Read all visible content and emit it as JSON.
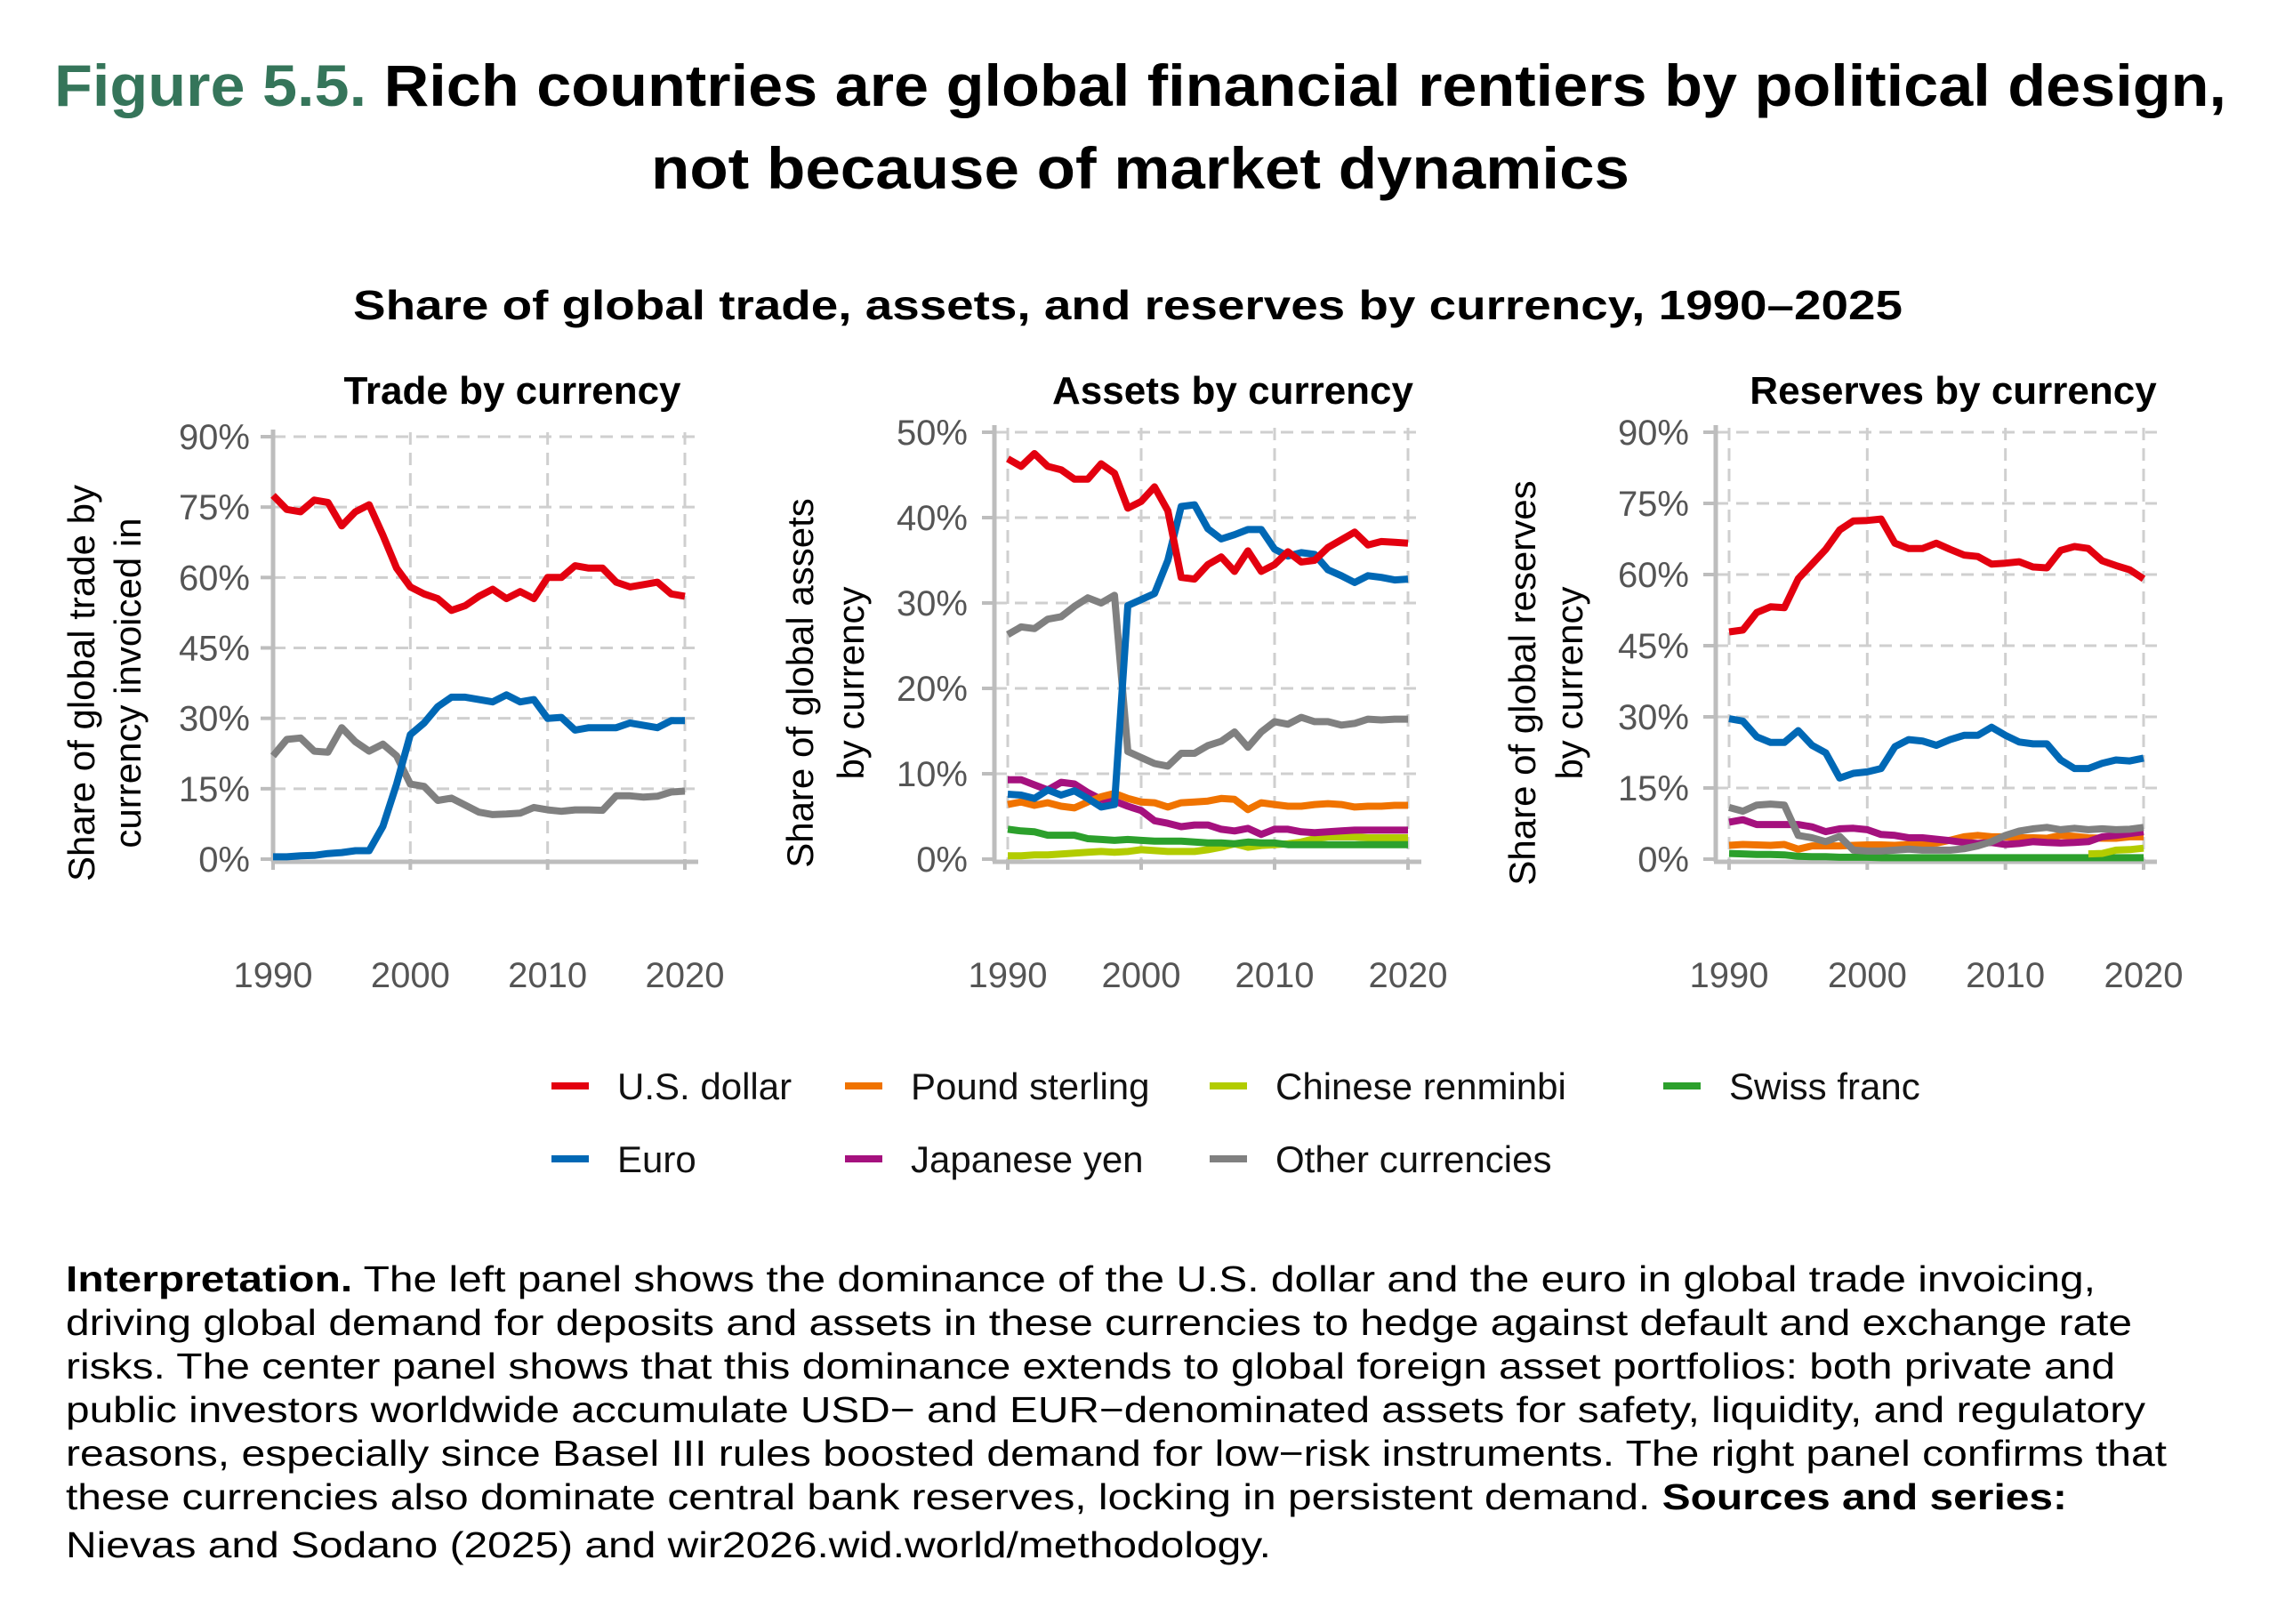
{
  "figure": {
    "label": "Figure 5.5.",
    "title_line1": "Rich countries are global financial rentiers by political design,",
    "title_line2": "not because of market dynamics",
    "label_color": "#35755a"
  },
  "subtitle": "Share of global trade, assets, and reserves by currency, 1990–2025",
  "legend": [
    {
      "key": "usd",
      "label": "U.S. dollar",
      "color": "#e3000f"
    },
    {
      "key": "gbp",
      "label": "Pound sterling",
      "color": "#f07300"
    },
    {
      "key": "cny",
      "label": "Chinese renminbi",
      "color": "#b2cc00"
    },
    {
      "key": "chf",
      "label": "Swiss franc",
      "color": "#2ca02c"
    },
    {
      "key": "eur",
      "label": "Euro",
      "color": "#0068b5"
    },
    {
      "key": "jpy",
      "label": "Japanese yen",
      "color": "#a5117e"
    },
    {
      "key": "oth",
      "label": "Other currencies",
      "color": "#808080"
    }
  ],
  "chart_data": [
    {
      "type": "line",
      "title": "Trade by currency",
      "ylabel": [
        "Share of global trade by",
        "currency invoiced in"
      ],
      "x": [
        1990,
        1991,
        1992,
        1993,
        1994,
        1995,
        1996,
        1997,
        1998,
        1999,
        2000,
        2001,
        2002,
        2003,
        2004,
        2005,
        2006,
        2007,
        2008,
        2009,
        2010,
        2011,
        2012,
        2013,
        2014,
        2015,
        2016,
        2017,
        2018,
        2019,
        2020
      ],
      "xticks": [
        "1990",
        "2000",
        "2010",
        "2020"
      ],
      "yticks": [
        "0%",
        "15%",
        "30%",
        "45%",
        "60%",
        "75%",
        "90%"
      ],
      "ylim": [
        0,
        90
      ],
      "grid": true,
      "series": [
        {
          "key": "oth",
          "values": [
            22,
            25.5,
            25.8,
            23,
            22.8,
            28,
            25,
            23,
            24.5,
            22,
            16,
            15.5,
            12.5,
            13,
            11.5,
            10,
            9.5,
            9.6,
            9.8,
            11,
            10.5,
            10.2,
            10.5,
            10.5,
            10.4,
            13.5,
            13.5,
            13.2,
            13.4,
            14.3,
            14.5
          ]
        },
        {
          "key": "eur",
          "values": [
            0.5,
            0.5,
            0.7,
            0.8,
            1.2,
            1.4,
            1.8,
            1.8,
            7,
            16,
            26.5,
            29,
            32.5,
            34.5,
            34.5,
            34,
            33.5,
            35,
            33.5,
            34,
            30,
            30.2,
            27.5,
            28,
            28,
            28,
            29,
            28.5,
            28,
            29.5,
            29.5
          ]
        },
        {
          "key": "usd",
          "values": [
            77.5,
            74.5,
            74,
            76.5,
            76,
            71,
            74,
            75.5,
            69,
            62,
            58,
            56.5,
            55.5,
            53,
            54,
            56,
            57.5,
            55.5,
            57,
            55.5,
            60,
            60,
            62.5,
            62,
            62,
            59,
            58,
            58.5,
            59,
            56.5,
            56
          ]
        }
      ]
    },
    {
      "type": "line",
      "title": "Assets by currency",
      "ylabel": [
        "Share of global assets",
        "by currency"
      ],
      "x": [
        1990,
        1991,
        1992,
        1993,
        1994,
        1995,
        1996,
        1997,
        1998,
        1999,
        2000,
        2001,
        2002,
        2003,
        2004,
        2005,
        2006,
        2007,
        2008,
        2009,
        2010,
        2011,
        2012,
        2013,
        2014,
        2015,
        2016,
        2017,
        2018,
        2019,
        2020
      ],
      "xticks": [
        "1990",
        "2000",
        "2010",
        "2020"
      ],
      "yticks": [
        "0%",
        "10%",
        "20%",
        "30%",
        "40%",
        "50%"
      ],
      "ylim": [
        0,
        50
      ],
      "grid": true,
      "series": [
        {
          "key": "cny",
          "values": [
            0.4,
            0.4,
            0.5,
            0.5,
            0.6,
            0.7,
            0.8,
            0.9,
            0.8,
            0.9,
            1.1,
            1,
            0.9,
            0.9,
            0.9,
            1.1,
            1.4,
            1.8,
            1.4,
            1.6,
            1.7,
            1.8,
            2,
            2.4,
            2.6,
            2.6,
            2.6,
            2.5,
            2.5,
            2.5,
            2.5
          ]
        },
        {
          "key": "chf",
          "values": [
            3.5,
            3.3,
            3.2,
            2.8,
            2.8,
            2.8,
            2.4,
            2.3,
            2.2,
            2.3,
            2.2,
            2.1,
            2.1,
            2.1,
            2,
            1.9,
            1.9,
            1.8,
            2,
            1.9,
            1.9,
            1.7,
            1.7,
            1.7,
            1.7,
            1.7,
            1.7,
            1.7,
            1.7,
            1.7,
            1.7
          ]
        },
        {
          "key": "jpy",
          "values": [
            9.3,
            9.3,
            8.7,
            8.1,
            9,
            8.8,
            7.8,
            7,
            6.8,
            6.2,
            5.7,
            4.5,
            4.2,
            3.8,
            4,
            4,
            3.5,
            3.3,
            3.6,
            2.9,
            3.5,
            3.5,
            3.2,
            3.1,
            3.2,
            3.3,
            3.4,
            3.4,
            3.4,
            3.4,
            3.4
          ]
        },
        {
          "key": "gbp",
          "values": [
            6.4,
            6.7,
            6.3,
            6.6,
            6.2,
            6,
            6.7,
            7.3,
            7.7,
            7.1,
            6.7,
            6.6,
            6.1,
            6.6,
            6.7,
            6.8,
            7.1,
            7,
            5.8,
            6.6,
            6.4,
            6.2,
            6.2,
            6.4,
            6.5,
            6.4,
            6.1,
            6.2,
            6.2,
            6.3,
            6.3
          ]
        },
        {
          "key": "oth",
          "values": [
            26.3,
            27.2,
            27,
            28.1,
            28.4,
            29.6,
            30.6,
            30,
            30.9,
            12.6,
            11.9,
            11.2,
            10.9,
            12.4,
            12.4,
            13.3,
            13.8,
            14.9,
            13.1,
            14.9,
            16.1,
            15.8,
            16.6,
            16.1,
            16.1,
            15.7,
            15.9,
            16.4,
            16.3,
            16.4,
            16.4
          ]
        },
        {
          "key": "eur",
          "values": [
            7.6,
            7.5,
            7.1,
            8.1,
            7.5,
            8,
            7.1,
            6.1,
            6.4,
            29.7,
            30.4,
            31.1,
            35,
            41.3,
            41.5,
            38.7,
            37.5,
            38,
            38.6,
            38.6,
            36.3,
            35.5,
            35.9,
            35.7,
            33.9,
            33.2,
            32.4,
            33.2,
            33,
            32.7,
            32.8
          ]
        },
        {
          "key": "usd",
          "values": [
            46.9,
            46,
            47.5,
            46,
            45.6,
            44.5,
            44.5,
            46.3,
            45.2,
            41.1,
            41.9,
            43.6,
            40.8,
            33,
            32.8,
            34.5,
            35.4,
            33.7,
            36.1,
            33.7,
            34.5,
            36,
            34.8,
            35,
            36.5,
            37.4,
            38.3,
            36.8,
            37.2,
            37.1,
            37
          ]
        }
      ]
    },
    {
      "type": "line",
      "title": "Reserves by currency",
      "ylabel": [
        "Share of global reserves",
        "by currency"
      ],
      "x": [
        1990,
        1991,
        1992,
        1993,
        1994,
        1995,
        1996,
        1997,
        1998,
        1999,
        2000,
        2001,
        2002,
        2003,
        2004,
        2005,
        2006,
        2007,
        2008,
        2009,
        2010,
        2011,
        2012,
        2013,
        2014,
        2015,
        2016,
        2017,
        2018,
        2019,
        2020
      ],
      "xticks": [
        "1990",
        "2000",
        "2010",
        "2020"
      ],
      "yticks": [
        "0%",
        "15%",
        "30%",
        "45%",
        "60%",
        "75%",
        "90%"
      ],
      "ylim": [
        0,
        90
      ],
      "grid": true,
      "series": [
        {
          "key": "chf",
          "values": [
            1.2,
            1.1,
            1,
            1,
            0.9,
            0.6,
            0.5,
            0.5,
            0.4,
            0.4,
            0.4,
            0.3,
            0.3,
            0.3,
            0.3,
            0.3,
            0.3,
            0.3,
            0.3,
            0.3,
            0.3,
            0.3,
            0.3,
            0.3,
            0.3,
            0.3,
            0.3,
            0.3,
            0.3,
            0.3,
            0.3
          ]
        },
        {
          "key": "cny",
          "values": [
            null,
            null,
            null,
            null,
            null,
            null,
            null,
            null,
            null,
            null,
            null,
            null,
            null,
            null,
            null,
            null,
            null,
            null,
            null,
            null,
            null,
            null,
            null,
            null,
            null,
            null,
            1.1,
            1.2,
            1.9,
            2,
            2.3
          ]
        },
        {
          "key": "gbp",
          "values": [
            2.9,
            3.1,
            3,
            2.9,
            3.1,
            2.1,
            2.8,
            2.8,
            2.8,
            2.9,
            3,
            3,
            2.9,
            3.1,
            3.3,
            3.4,
            4,
            4.7,
            5,
            4.7,
            4.7,
            4.5,
            4.5,
            4.4,
            5,
            4.8,
            4.5,
            4.4,
            4.4,
            4.7,
            4.7
          ]
        },
        {
          "key": "jpy",
          "values": [
            7.8,
            8.3,
            7.3,
            7.3,
            7.3,
            7.3,
            6.8,
            5.8,
            6.4,
            6.5,
            6.2,
            5.2,
            5,
            4.5,
            4.5,
            4.2,
            3.9,
            3.5,
            3.3,
            3.5,
            3.1,
            3.3,
            3.7,
            3.5,
            3.4,
            3.5,
            3.7,
            4.7,
            5,
            5.4,
            5.8
          ]
        },
        {
          "key": "oth",
          "values": [
            10.9,
            10.1,
            11.4,
            11.6,
            11.4,
            5,
            4.5,
            3.7,
            4.8,
            1.9,
            1.7,
            1.7,
            1.9,
            2.1,
            1.9,
            1.9,
            1.9,
            2.2,
            2.8,
            3.7,
            5,
            5.9,
            6.4,
            6.7,
            6.2,
            6.5,
            6.2,
            6.4,
            6.2,
            6.3,
            6.7
          ]
        },
        {
          "key": "eur",
          "values": [
            29.6,
            29.1,
            25.8,
            24.6,
            24.6,
            27.1,
            24,
            22.4,
            17.1,
            18.1,
            18.4,
            19.1,
            23.7,
            25.2,
            24.9,
            24,
            25.2,
            26.1,
            26.1,
            27.8,
            26.1,
            24.7,
            24.3,
            24.3,
            20.9,
            19.1,
            19.1,
            20.2,
            20.9,
            20.7,
            21.3
          ]
        },
        {
          "key": "usd",
          "values": [
            47.9,
            48.3,
            52,
            53.2,
            53,
            59.1,
            62.2,
            65.3,
            69.4,
            71.3,
            71.4,
            71.7,
            66.6,
            65.5,
            65.5,
            66.6,
            65.3,
            64.1,
            63.8,
            62.2,
            62.4,
            62.7,
            61.6,
            61.4,
            65.1,
            65.9,
            65.5,
            62.9,
            61.9,
            61,
            59.1
          ]
        }
      ]
    }
  ],
  "interpretation": {
    "label": "Interpretation.",
    "line1": " The left panel shows the dominance of the U.S. dollar and the euro in global trade invoicing,",
    "line2": "driving global demand for deposits and assets in these currencies to hedge against default and exchange rate",
    "line3": "risks. The center panel shows that this dominance extends to global foreign asset portfolios: both private and",
    "line4": "public investors worldwide accumulate USD− and EUR−denominated assets for safety, liquidity, and regulatory",
    "line5": "reasons, especially since Basel III rules boosted demand for low−risk instruments. The right panel confirms that",
    "line6": "these currencies also dominate central bank reserves, locking in persistent demand. ",
    "sources_label": "Sources and series:",
    "line7": "Nievas and Sodano (2025) and wir2026.wid.world/methodology."
  }
}
